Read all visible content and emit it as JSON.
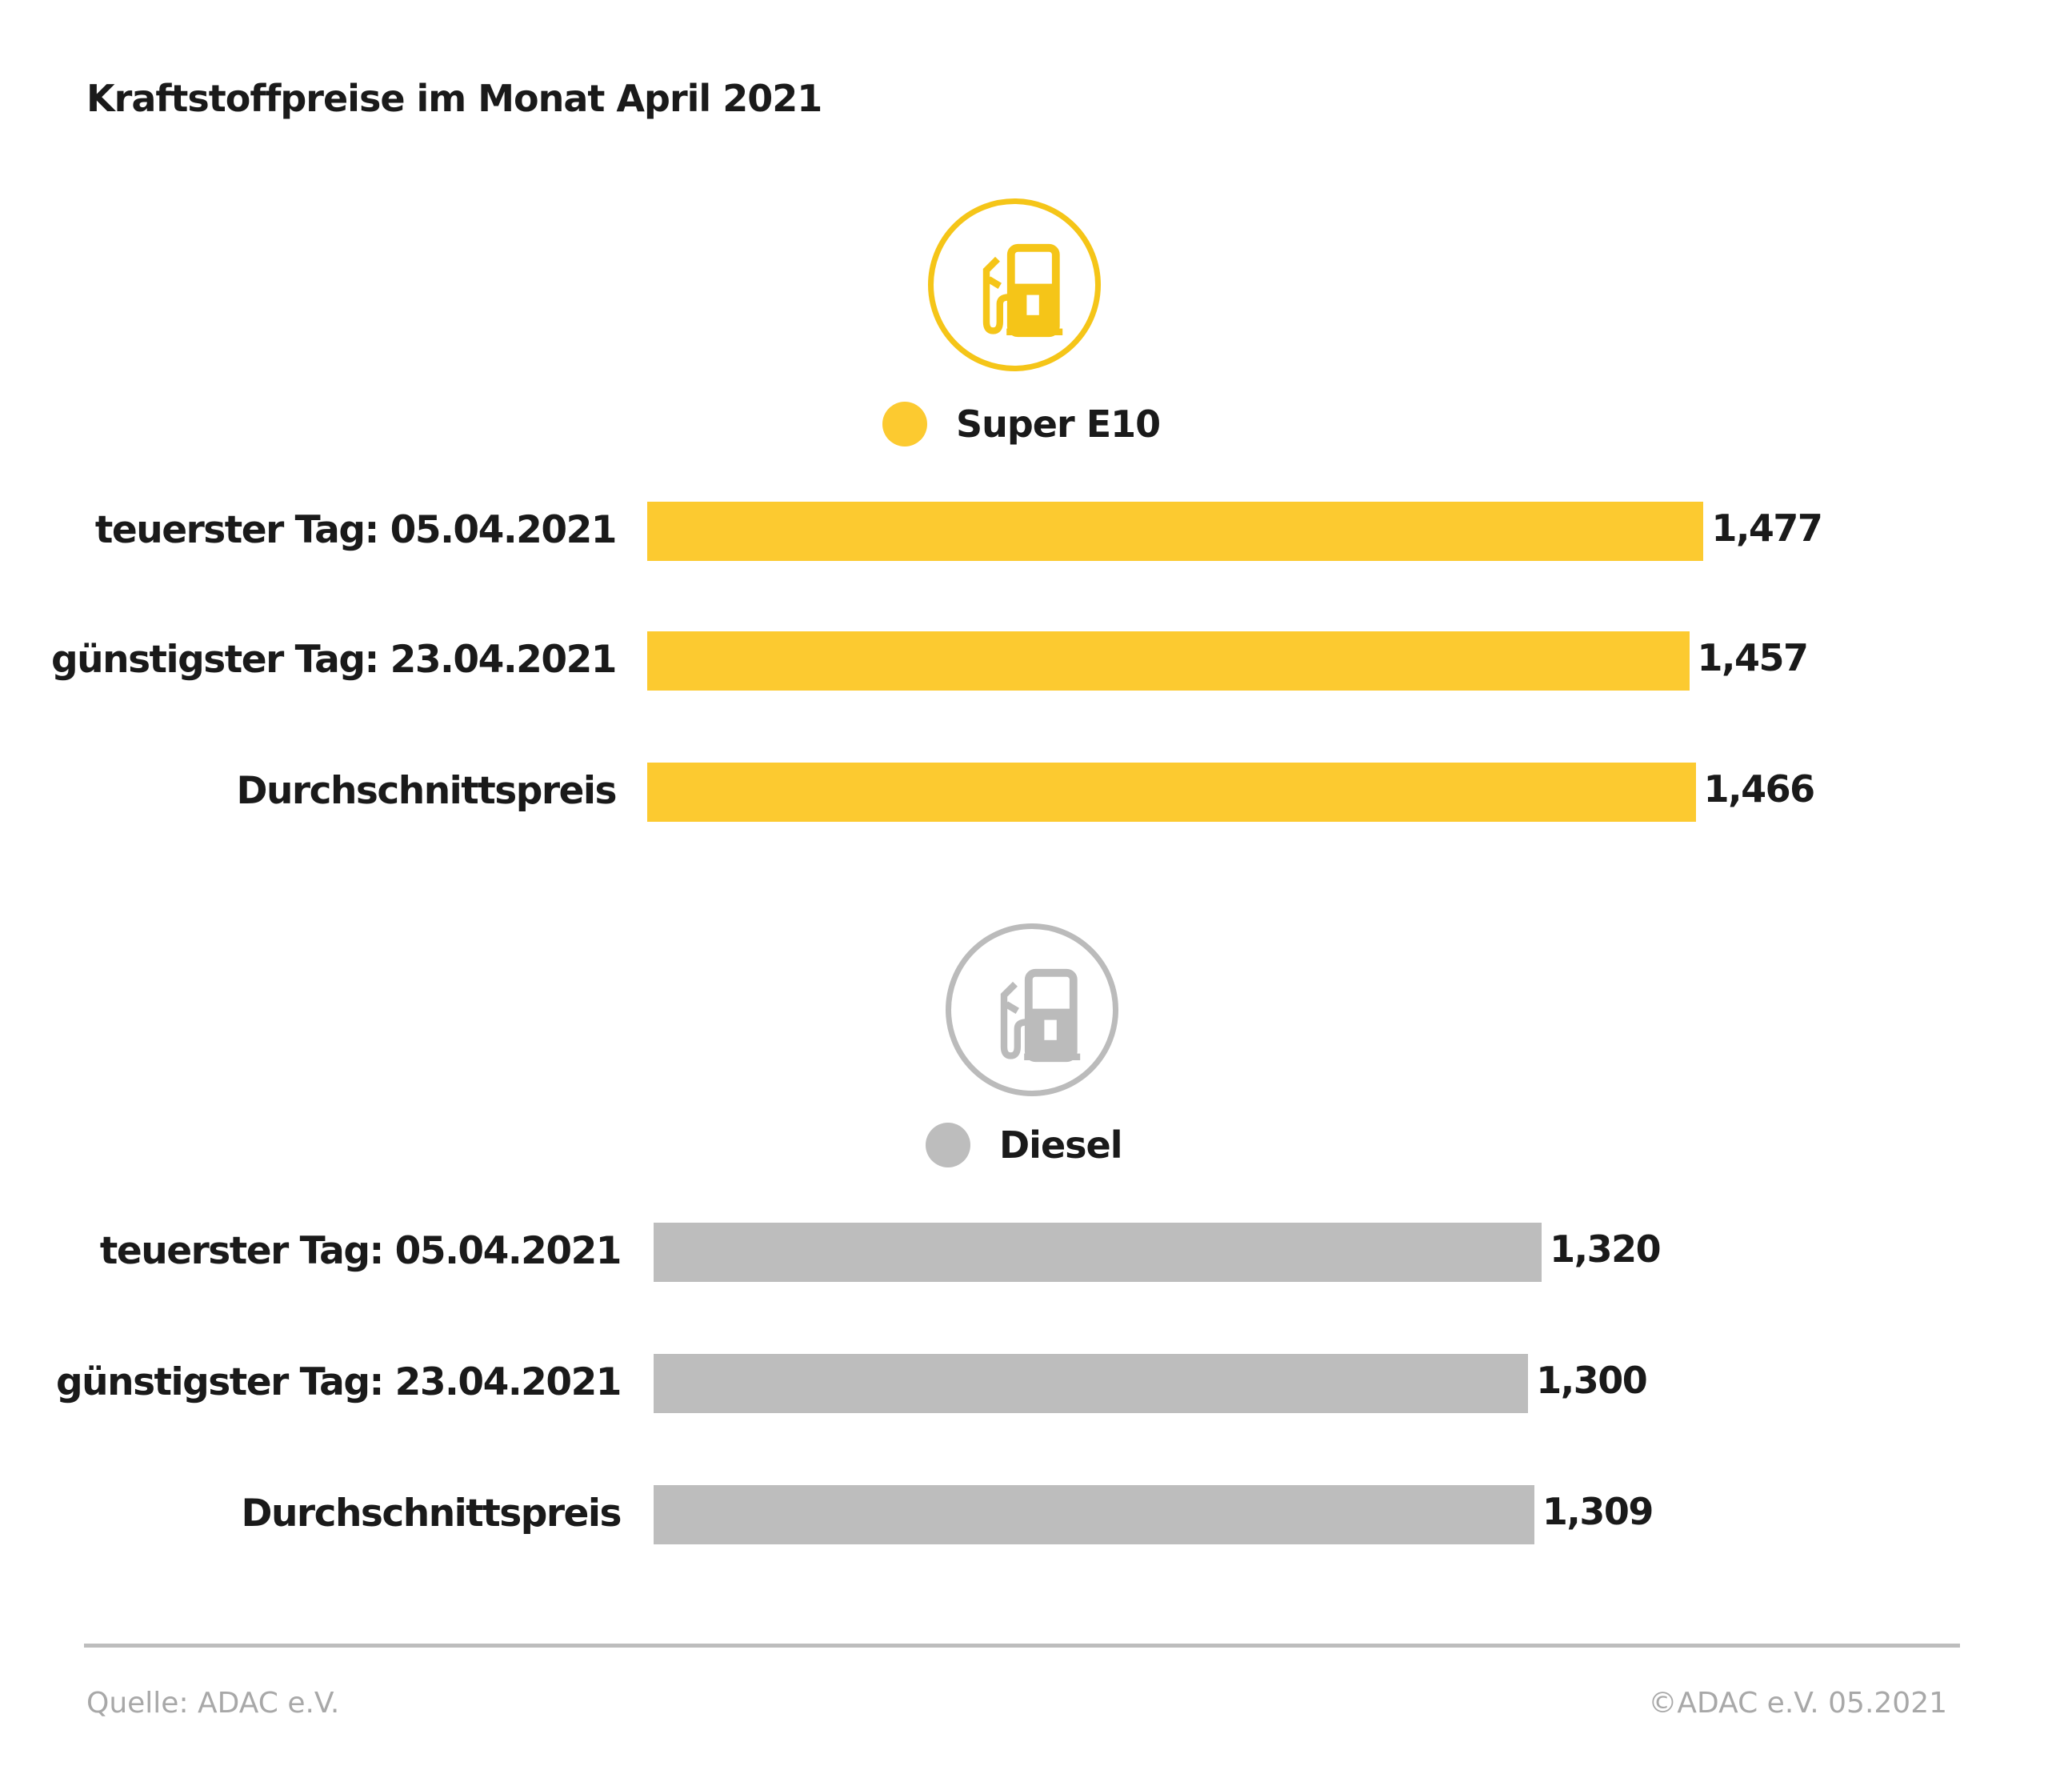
{
  "title": "Kraftstoffpreise im Monat April 2021",
  "chart_data": [
    {
      "type": "bar",
      "orientation": "horizontal",
      "legend": "Super E10",
      "icon": "fuel-pump-icon",
      "color": "#FCCA30",
      "categories": [
        "teuerster Tag: 05.04.2021",
        "günstigster Tag: 23.04.2021",
        "Durchschnittspreis"
      ],
      "values": [
        1.477,
        1.457,
        1.466
      ],
      "value_labels": [
        "1,477",
        "1,457",
        "1,466"
      ]
    },
    {
      "type": "bar",
      "orientation": "horizontal",
      "legend": "Diesel",
      "icon": "fuel-pump-icon",
      "color": "#BDBDBD",
      "categories": [
        "teuerster Tag: 05.04.2021",
        "günstigster Tag: 23.04.2021",
        "Durchschnittspreis"
      ],
      "values": [
        1.32,
        1.3,
        1.309
      ],
      "value_labels": [
        "1,320",
        "1,300",
        "1,309"
      ]
    }
  ],
  "footer": {
    "source": "Quelle: ADAC e.V.",
    "copyright": "©ADAC e.V. 05.2021"
  }
}
